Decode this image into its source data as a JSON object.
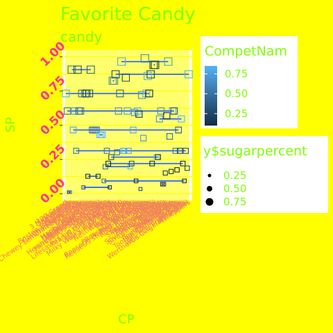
{
  "chart_data": {
    "type": "scatter",
    "title": "Favorite Candy",
    "subtitle": "candy",
    "xlabel": "CP",
    "ylabel": "SP",
    "ylim": [
      0,
      1
    ],
    "yticks": [
      "0.00",
      "0.25",
      "0.50",
      "0.75",
      "1.00"
    ],
    "yticks_values": [
      0,
      0.25,
      0.5,
      0.75,
      1.0
    ],
    "grid": true,
    "legend_color": {
      "title": "CompetNam",
      "labels": [
        "0.75",
        "0.50",
        "0.25"
      ],
      "values": [
        0.75,
        0.5,
        0.25
      ],
      "range": [
        0.1,
        0.85
      ],
      "low_color": "#132b43",
      "high_color": "#56b1f7"
    },
    "legend_size": {
      "title": "y$sugarpercent",
      "labels": [
        "0.25",
        "0.50",
        "0.75"
      ],
      "values": [
        0.25,
        0.5,
        0.75
      ]
    },
    "categories": [
      "100 Grand",
      "3 Musketeers",
      "One dime",
      "One quarter",
      "Air Heads",
      "Almond Joy",
      "Baby Ruth",
      "Boston Baked Beans",
      "Candy Corn",
      "Caramel Apple Pops",
      "Charleston Chew",
      "Chewey Lemonhead Fruit Mix",
      "Chiclets",
      "Dots",
      "Dum Dums",
      "Fruit Chews",
      "Fun Dip",
      "Gobstopper",
      "Haribo Gold Bears",
      "Haribo Happy Cola",
      "Haribo Sour Bears",
      "Haribo Twin Snakes",
      "HersheyÕs Kisses",
      "HersheyÕs Krackel",
      "HersheyÕs Milk Chocolate",
      "HersheyÕs Special Dark",
      "Jawbusters",
      "Junior Mints",
      "Kit Kat",
      "Laffy Taffy",
      "Lemonhead",
      "Lifesavers big ring gummies",
      "Peanut butter M&MÕs",
      "M&MÕs",
      "Mike & Ike",
      "Milk Duds",
      "Milky Way",
      "Milky Way Midnight",
      "Milky Way Simply Caramel",
      "Mounds",
      "Mr Good Bar",
      "Nerds",
      "Nestle Butterfinger",
      "Nestle Crunch",
      "Nik L Nip",
      "Now & Later",
      "Payday",
      "Peanut M&Ms",
      "Pixie Sticks",
      "Pop Rocks",
      "Red vines",
      "ReeseÕs Miniatures",
      "ReeseÕs Peanut Butter cup",
      "ReeseÕs pieces",
      "ReeseÕs stuffed with pieces",
      "Ring pop",
      "Rolo",
      "Root Beer Barrels",
      "Runts",
      "Sixlets",
      "Skittles original",
      "Skittles wildberry",
      "Nestle Smarties",
      "Smarties candy",
      "Snickers",
      "Snickers Crisper",
      "Sour Patch Kids",
      "Sour Patch Tricksters",
      "Starburst",
      "Strawberry bon bons",
      "Sugar Babies",
      "Sugar Daddy",
      "Super Bubble",
      "Swedish Fish",
      "Tootsie Pop",
      "Tootsie Roll Juniors",
      "Tootsie Roll Midgies",
      "Tootsie Roll Snack Bars",
      "Trolli Sour Bites",
      "Twix",
      "Twizzlers",
      "Warheads",
      "WelchÕs Fruit Snacks",
      "WertherÕs Original Caramel",
      "Whoppers"
    ],
    "sugarpercent": [
      0.732,
      0.604,
      0.011,
      0.011,
      0.906,
      0.465,
      0.604,
      0.313,
      0.906,
      0.604,
      0.604,
      0.732,
      0.046,
      0.732,
      0.732,
      0.127,
      0.732,
      0.906,
      0.465,
      0.465,
      0.465,
      0.465,
      0.127,
      0.43,
      0.43,
      0.43,
      0.093,
      0.197,
      0.313,
      0.22,
      0.046,
      0.267,
      0.825,
      0.825,
      0.872,
      0.302,
      0.604,
      0.732,
      0.965,
      0.313,
      0.313,
      0.848,
      0.604,
      0.313,
      0.197,
      0.22,
      0.465,
      0.593,
      0.093,
      0.604,
      0.581,
      0.034,
      0.72,
      0.406,
      0.988,
      0.732,
      0.86,
      0.732,
      0.872,
      0.22,
      0.941,
      0.941,
      0.267,
      0.267,
      0.546,
      0.604,
      0.069,
      0.069,
      0.151,
      0.569,
      0.965,
      0.418,
      0.162,
      0.604,
      0.604,
      0.313,
      0.174,
      0.465,
      0.313,
      0.546,
      0.22,
      0.093,
      0.313,
      0.186,
      0.872
    ],
    "pricepercent": [
      0.86,
      0.511,
      0.116,
      0.511,
      0.511,
      0.767,
      0.767,
      0.511,
      0.325,
      0.325,
      0.511,
      0.511,
      0.325,
      0.511,
      0.034,
      0.034,
      0.325,
      0.453,
      0.465,
      0.465,
      0.465,
      0.465,
      0.093,
      0.918,
      0.918,
      0.918,
      0.511,
      0.511,
      0.511,
      0.116,
      0.104,
      0.279,
      0.651,
      0.651,
      0.325,
      0.511,
      0.651,
      0.441,
      0.86,
      0.86,
      0.918,
      0.325,
      0.767,
      0.767,
      0.976,
      0.325,
      0.767,
      0.651,
      0.023,
      0.837,
      0.116,
      0.279,
      0.651,
      0.651,
      0.651,
      0.965,
      0.86,
      0.069,
      0.279,
      0.081,
      0.22,
      0.22,
      0.976,
      0.116,
      0.651,
      0.651,
      0.116,
      0.116,
      0.22,
      0.058,
      0.767,
      0.418,
      0.116,
      0.755,
      0.325,
      0.511,
      0.011,
      0.325,
      0.255,
      0.906,
      0.116,
      0.116,
      0.313,
      0.267,
      0.848
    ]
  }
}
